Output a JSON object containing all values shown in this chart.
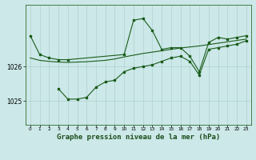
{
  "background_color": "#cce8e8",
  "grid_color": "#b0d0d0",
  "line_color": "#1a5c1a",
  "marker_color": "#1a5c1a",
  "xlabel": "Graphe pression niveau de la mer (hPa)",
  "xlabel_fontsize": 6.5,
  "ylabel_ticks": [
    1025,
    1026
  ],
  "xlim": [
    -0.5,
    23.5
  ],
  "ylim": [
    1024.3,
    1027.8
  ],
  "x_ticks": [
    0,
    1,
    2,
    3,
    4,
    5,
    6,
    7,
    8,
    9,
    10,
    11,
    12,
    13,
    14,
    15,
    16,
    17,
    18,
    19,
    20,
    21,
    22,
    23
  ],
  "series": [
    {
      "x": [
        0,
        1,
        2,
        3,
        4,
        5,
        6,
        7,
        8,
        9,
        10,
        11,
        12,
        13,
        14,
        15,
        16,
        17,
        18,
        19,
        20,
        21,
        22,
        23
      ],
      "y": [
        1026.25,
        1026.18,
        1026.15,
        1026.13,
        1026.12,
        1026.13,
        1026.14,
        1026.16,
        1026.18,
        1026.22,
        1026.28,
        1026.33,
        1026.38,
        1026.42,
        1026.46,
        1026.5,
        1026.54,
        1026.57,
        1026.6,
        1026.64,
        1026.68,
        1026.72,
        1026.76,
        1026.8
      ],
      "has_markers": false
    },
    {
      "x": [
        0,
        1,
        2,
        3,
        4,
        10,
        11,
        12,
        13,
        14,
        15,
        16,
        17,
        18,
        19,
        20,
        21,
        22,
        23
      ],
      "y": [
        1026.9,
        1026.35,
        1026.25,
        1026.2,
        1026.2,
        1026.35,
        1027.35,
        1027.4,
        1027.05,
        1026.5,
        1026.55,
        1026.55,
        1026.3,
        1025.85,
        1026.7,
        1026.85,
        1026.8,
        1026.85,
        1026.9
      ],
      "has_markers": true
    },
    {
      "x": [
        3,
        4,
        5,
        6,
        7,
        8,
        9,
        10,
        11,
        12,
        13,
        14,
        15,
        16,
        17,
        18,
        19,
        20,
        21,
        22,
        23
      ],
      "y": [
        1025.35,
        1025.05,
        1025.05,
        1025.1,
        1025.4,
        1025.55,
        1025.6,
        1025.85,
        1025.95,
        1026.0,
        1026.05,
        1026.15,
        1026.25,
        1026.3,
        1026.15,
        1025.75,
        1026.5,
        1026.55,
        1026.6,
        1026.65,
        1026.75
      ],
      "has_markers": true
    }
  ]
}
